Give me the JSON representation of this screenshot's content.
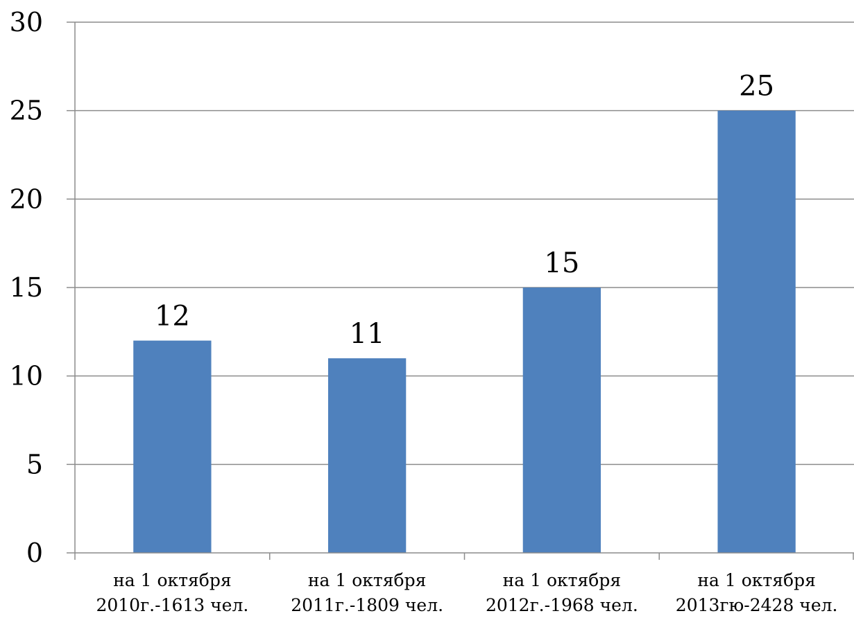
{
  "chart_data": {
    "type": "bar",
    "categories": [
      [
        "на 1 октября",
        "2010г.-1613 чел."
      ],
      [
        "на 1 октября",
        "2011г.-1809 чел."
      ],
      [
        "на 1 октября",
        "2012г.-1968 чел."
      ],
      [
        "на 1 октября",
        "2013гю-2428 чел."
      ]
    ],
    "values": [
      12,
      11,
      15,
      25
    ],
    "data_labels": [
      "12",
      "11",
      "15",
      "25"
    ],
    "yticks": [
      "0",
      "5",
      "10",
      "15",
      "20",
      "25",
      "30"
    ],
    "ylim": [
      0,
      30
    ],
    "grid": true,
    "legend": "none",
    "title": "",
    "xlabel": "",
    "ylabel": "",
    "colors": {
      "bar": "#4F81BD",
      "grid": "#8C8C8C",
      "axis": "#8C8C8C"
    }
  }
}
